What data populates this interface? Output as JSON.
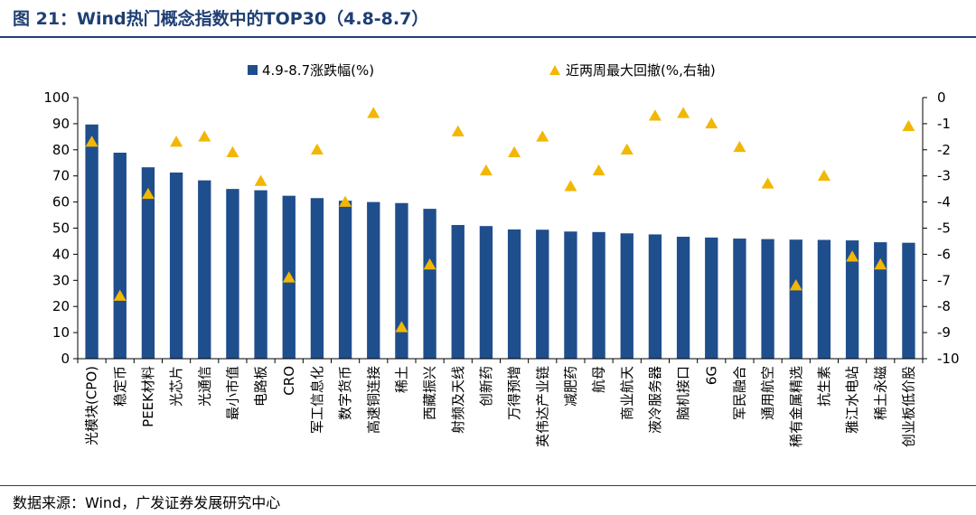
{
  "figure": {
    "title": "图 21：Wind热门概念指数中的TOP30（4.8-8.7）",
    "source": "数据来源：Wind，广发证券发展研究中心"
  },
  "colors": {
    "bar": "#1f4e8c",
    "marker": "#f2b705",
    "title": "#1f3f73"
  },
  "chart_data": {
    "type": "bar",
    "categories": [
      "光模块(CPO)",
      "稳定币",
      "PEEK材料",
      "光芯片",
      "光通信",
      "最小市值",
      "电路板",
      "CRO",
      "军工信息化",
      "数字货币",
      "高速铜连接",
      "稀土",
      "西藏振兴",
      "射频及天线",
      "创新药",
      "万得预增",
      "英伟达产业链",
      "减肥药",
      "航母",
      "商业航天",
      "液冷服务器",
      "脑机接口",
      "6G",
      "军民融合",
      "通用航空",
      "稀有金属精选",
      "抗生素",
      "雅江水电站",
      "稀土永磁",
      "创业板低价股"
    ],
    "series": [
      {
        "name": "4.9-8.7涨跌幅(%)",
        "type": "bar",
        "axis": "left",
        "values": [
          89.7,
          78.9,
          73.3,
          71.3,
          68.3,
          65.0,
          64.5,
          62.4,
          61.5,
          60.5,
          60.0,
          59.6,
          57.4,
          51.2,
          50.8,
          49.5,
          49.4,
          48.7,
          48.5,
          48.0,
          47.6,
          46.7,
          46.4,
          46.0,
          45.8,
          45.6,
          45.5,
          45.3,
          44.6,
          44.4
        ]
      },
      {
        "name": "近两周最大回撤(%,右轴)",
        "type": "scatter",
        "marker": "triangle",
        "axis": "right",
        "values": [
          -1.7,
          -7.6,
          -3.7,
          -1.7,
          -1.5,
          -2.1,
          -3.2,
          -6.9,
          -2.0,
          -4.0,
          -0.6,
          -8.8,
          -6.4,
          -1.3,
          -2.8,
          -2.1,
          -1.5,
          -3.4,
          -2.8,
          -2.0,
          -0.7,
          -0.6,
          -1.0,
          -1.9,
          -3.3,
          -7.2,
          -3.0,
          -6.1,
          -6.4,
          -1.1
        ]
      }
    ],
    "y_left": {
      "min": 0,
      "max": 100,
      "step": 10,
      "ticks": [
        "0",
        "10",
        "20",
        "30",
        "40",
        "50",
        "60",
        "70",
        "80",
        "90",
        "100"
      ]
    },
    "y_right": {
      "min": -10,
      "max": 0,
      "step": 1,
      "ticks": [
        "-10",
        "-9",
        "-8",
        "-7",
        "-6",
        "-5",
        "-4",
        "-3",
        "-2",
        "-1",
        "0"
      ]
    },
    "grid": false,
    "legend_position": "top"
  }
}
